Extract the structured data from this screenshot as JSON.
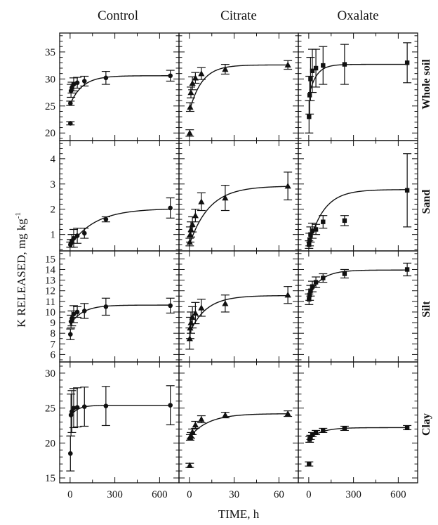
{
  "chart_data": {
    "type": "scatter",
    "xlabel": "TIME, h",
    "ylabel": "K RELEASED, mg kg",
    "ylabel_superscript": "-1",
    "columns": [
      "Control",
      "Citrate",
      "Oxalate"
    ],
    "rows": [
      "Whole soil",
      "Sand",
      "Silt",
      "Clay"
    ],
    "x_ticks": [
      [
        "0",
        "300",
        "600"
      ],
      [
        "0",
        "30",
        "60"
      ],
      [
        "0",
        "300",
        "600"
      ]
    ],
    "x_tick_values": [
      [
        0,
        300,
        600
      ],
      [
        0,
        30,
        60
      ],
      [
        0,
        300,
        600
      ]
    ],
    "xlim": [
      [
        -70,
        730
      ],
      [
        -7,
        73
      ],
      [
        -70,
        730
      ]
    ],
    "markers": {
      "Control": "circle",
      "Citrate": "triangle",
      "Oxalate": "square"
    },
    "y_axes": {
      "Whole soil": {
        "ylim": [
          18.6,
          38.5
        ],
        "ticks": [
          20,
          25,
          30,
          35
        ],
        "tick_labels": [
          "20",
          "25",
          "30",
          "35"
        ],
        "minor_step": 1
      },
      "Sand": {
        "ylim": [
          0.35,
          4.72
        ],
        "ticks": [
          1,
          2,
          3,
          4
        ],
        "tick_labels": [
          "1",
          "2",
          "3",
          "4"
        ],
        "minor_step": 0.2
      },
      "Silt": {
        "ylim": [
          5.3,
          15.75
        ],
        "ticks": [
          6,
          7,
          8,
          9,
          10,
          11,
          12,
          13,
          14,
          15
        ],
        "tick_labels": [
          "6",
          "7",
          "8",
          "9",
          "10",
          "11",
          "12",
          "13",
          "14",
          "15"
        ],
        "minor_step": 0.5
      },
      "Clay": {
        "ylim": [
          14.3,
          31.6
        ],
        "ticks": [
          15,
          20,
          25,
          30
        ],
        "tick_labels": [
          "15",
          "20",
          "25",
          "30"
        ],
        "minor_step": 1
      }
    },
    "panels": [
      {
        "row": "Whole soil",
        "column": "Control",
        "points": [
          [
            2,
            21.8,
            0.3
          ],
          [
            2,
            25.5,
            0.4
          ],
          [
            6,
            27.8,
            1.2
          ],
          [
            12,
            28.4,
            1.0
          ],
          [
            24,
            29.0,
            1.2
          ],
          [
            48,
            29.3,
            1.0
          ],
          [
            96,
            29.6,
            0.9
          ],
          [
            240,
            30.2,
            1.2
          ],
          [
            672,
            30.6,
            1.0
          ]
        ],
        "curve": {
          "y0": 25.3,
          "asym": 30.6,
          "k": 0.012
        }
      },
      {
        "row": "Whole soil",
        "column": "Citrate",
        "points": [
          [
            0.2,
            20.0,
            0.6
          ],
          [
            0.5,
            24.8,
            0.8
          ],
          [
            1,
            27.5,
            1.0
          ],
          [
            2,
            29.2,
            1.2
          ],
          [
            4,
            30.2,
            1.0
          ],
          [
            8,
            31.0,
            1.1
          ],
          [
            24,
            31.8,
            0.9
          ],
          [
            66,
            32.6,
            0.8
          ]
        ],
        "curve": {
          "y0": 24.0,
          "asym": 32.6,
          "k": 0.12
        }
      },
      {
        "row": "Whole soil",
        "column": "Oxalate",
        "points": [
          [
            2,
            23.0,
            3.0
          ],
          [
            6,
            27.0,
            3.5
          ],
          [
            12,
            30.0,
            4.0
          ],
          [
            24,
            31.5,
            4.0
          ],
          [
            48,
            32.0,
            3.5
          ],
          [
            96,
            32.5,
            3.5
          ],
          [
            240,
            32.7,
            3.7
          ],
          [
            660,
            33.0,
            3.7
          ]
        ],
        "curve": {
          "y0": 26.8,
          "asym": 32.7,
          "k": 0.02
        }
      },
      {
        "row": "Sand",
        "column": "Control",
        "points": [
          [
            2,
            0.6,
            0.1
          ],
          [
            6,
            0.65,
            0.15
          ],
          [
            12,
            0.75,
            0.25
          ],
          [
            24,
            0.85,
            0.35
          ],
          [
            48,
            0.95,
            0.3
          ],
          [
            96,
            1.05,
            0.2
          ],
          [
            240,
            1.6,
            0.1
          ],
          [
            672,
            2.05,
            0.4
          ]
        ],
        "curve": {
          "y0": 0.55,
          "asym": 2.03,
          "k": 0.006
        }
      },
      {
        "row": "Sand",
        "column": "Citrate",
        "points": [
          [
            0.2,
            0.7,
            0.15
          ],
          [
            0.5,
            1.0,
            0.3
          ],
          [
            1,
            1.2,
            0.3
          ],
          [
            2,
            1.4,
            0.3
          ],
          [
            4,
            1.75,
            0.25
          ],
          [
            8,
            2.3,
            0.35
          ],
          [
            24,
            2.45,
            0.5
          ],
          [
            66,
            2.92,
            0.55
          ]
        ],
        "curve": {
          "y0": 0.6,
          "asym": 2.92,
          "k": 0.075
        }
      },
      {
        "row": "Sand",
        "column": "Oxalate",
        "points": [
          [
            2,
            0.6,
            0.15
          ],
          [
            6,
            0.8,
            0.25
          ],
          [
            12,
            1.0,
            0.3
          ],
          [
            24,
            1.15,
            0.3
          ],
          [
            48,
            1.2,
            0.2
          ],
          [
            96,
            1.5,
            0.25
          ],
          [
            240,
            1.55,
            0.2
          ],
          [
            660,
            2.75,
            1.45
          ]
        ],
        "curve": {
          "y0": 0.55,
          "asym": 2.78,
          "k": 0.01
        }
      },
      {
        "row": "Silt",
        "column": "Control",
        "points": [
          [
            2,
            7.9,
            0.5
          ],
          [
            6,
            9.1,
            0.6
          ],
          [
            12,
            9.4,
            0.7
          ],
          [
            24,
            9.8,
            0.8
          ],
          [
            48,
            10.0,
            0.5
          ],
          [
            96,
            10.1,
            0.7
          ],
          [
            240,
            10.5,
            0.8
          ],
          [
            672,
            10.6,
            0.7
          ]
        ],
        "curve": {
          "y0": 8.8,
          "asym": 10.65,
          "k": 0.012
        }
      },
      {
        "row": "Silt",
        "column": "Citrate",
        "points": [
          [
            0.2,
            7.5,
            1.0
          ],
          [
            0.5,
            8.5,
            1.0
          ],
          [
            1,
            9.0,
            1.0
          ],
          [
            2,
            9.5,
            1.0
          ],
          [
            4,
            9.9,
            1.0
          ],
          [
            8,
            10.4,
            0.8
          ],
          [
            24,
            10.8,
            0.8
          ],
          [
            66,
            11.6,
            0.8
          ]
        ],
        "curve": {
          "y0": 8.0,
          "asym": 11.55,
          "k": 0.09
        }
      },
      {
        "row": "Silt",
        "column": "Oxalate",
        "points": [
          [
            2,
            11.2,
            0.5
          ],
          [
            6,
            11.6,
            0.5
          ],
          [
            12,
            12.0,
            0.5
          ],
          [
            24,
            12.4,
            0.5
          ],
          [
            48,
            12.8,
            0.5
          ],
          [
            96,
            13.2,
            0.4
          ],
          [
            240,
            13.6,
            0.4
          ],
          [
            660,
            14.0,
            0.6
          ]
        ],
        "curve": {
          "y0": 11.5,
          "asym": 13.95,
          "k": 0.012
        }
      },
      {
        "row": "Clay",
        "column": "Control",
        "points": [
          [
            2,
            18.5,
            2.5
          ],
          [
            6,
            24.0,
            3.0
          ],
          [
            12,
            24.5,
            3.0
          ],
          [
            24,
            25.0,
            2.8
          ],
          [
            48,
            25.1,
            2.8
          ],
          [
            96,
            25.2,
            2.8
          ],
          [
            240,
            25.3,
            2.8
          ],
          [
            672,
            25.4,
            2.8
          ]
        ],
        "curve": {
          "y0": 23.8,
          "asym": 25.4,
          "k": 0.02
        }
      },
      {
        "row": "Clay",
        "column": "Citrate",
        "points": [
          [
            0.2,
            16.8,
            0.3
          ],
          [
            0.5,
            20.8,
            0.4
          ],
          [
            1,
            21.1,
            0.4
          ],
          [
            2,
            21.6,
            0.4
          ],
          [
            4,
            22.6,
            0.5
          ],
          [
            8,
            23.4,
            0.5
          ],
          [
            24,
            24.0,
            0.4
          ],
          [
            66,
            24.2,
            0.4
          ]
        ],
        "curve": {
          "y0": 20.8,
          "asym": 24.2,
          "k": 0.08
        }
      },
      {
        "row": "Clay",
        "column": "Oxalate",
        "points": [
          [
            2,
            17.0,
            0.3
          ],
          [
            6,
            20.5,
            0.4
          ],
          [
            12,
            20.8,
            0.3
          ],
          [
            24,
            21.2,
            0.3
          ],
          [
            48,
            21.5,
            0.3
          ],
          [
            96,
            21.8,
            0.3
          ],
          [
            240,
            22.1,
            0.3
          ],
          [
            660,
            22.2,
            0.3
          ]
        ],
        "curve": {
          "y0": 20.5,
          "asym": 22.2,
          "k": 0.012
        }
      }
    ]
  }
}
